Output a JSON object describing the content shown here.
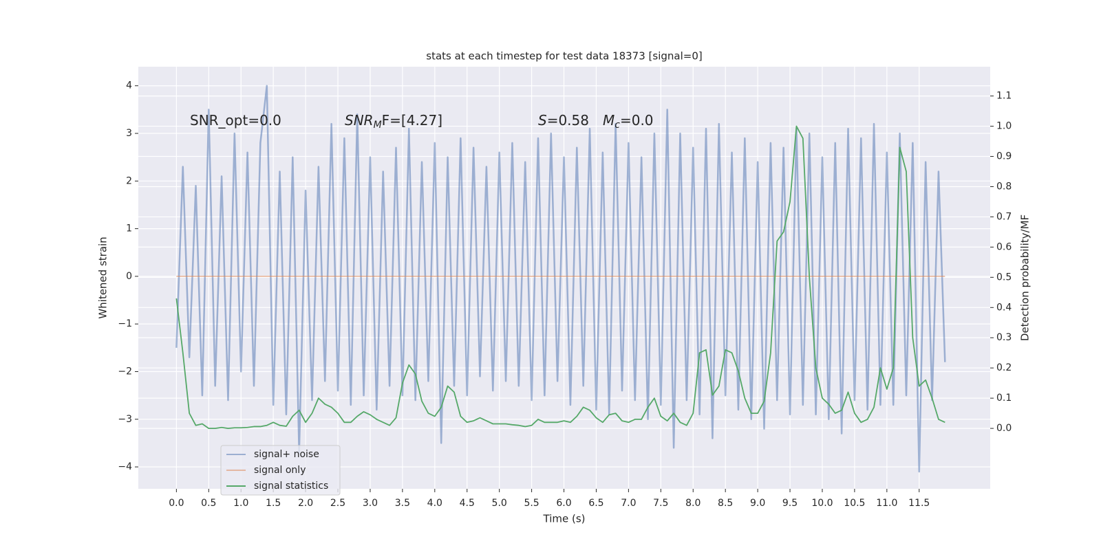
{
  "chart_data": {
    "type": "line",
    "title": "stats at each timestep for test data 18373 [signal=0]",
    "xlabel": "Time (s)",
    "ylabel": "Whitened strain",
    "y2label": "Detection probability/MF",
    "annotations": [
      [
        {
          "text": "SNR_opt=0.0",
          "style": "normal"
        }
      ],
      [
        {
          "text": "SNR",
          "style": "italic"
        },
        {
          "text": "M",
          "style": "sub"
        },
        {
          "text": "F=[4.27]",
          "style": "normal"
        }
      ],
      [
        {
          "text": "S",
          "style": "italic"
        },
        {
          "text": "=0.58",
          "style": "normal"
        }
      ],
      [
        {
          "text": "M",
          "style": "italic"
        },
        {
          "text": "c",
          "style": "sub"
        },
        {
          "text": "=0.0",
          "style": "normal"
        }
      ]
    ],
    "x": [
      0,
      0.1,
      0.2,
      0.3,
      0.4,
      0.5,
      0.6,
      0.7,
      0.8,
      0.9,
      1,
      1.1,
      1.2,
      1.3,
      1.4,
      1.5,
      1.6,
      1.7,
      1.8,
      1.9,
      2,
      2.1,
      2.2,
      2.3,
      2.4,
      2.5,
      2.6,
      2.7,
      2.8,
      2.9,
      3,
      3.1,
      3.2,
      3.3,
      3.4,
      3.5,
      3.6,
      3.7,
      3.8,
      3.9,
      4,
      4.1,
      4.2,
      4.3,
      4.4,
      4.5,
      4.6,
      4.7,
      4.8,
      4.9,
      5,
      5.1,
      5.2,
      5.3,
      5.4,
      5.5,
      5.6,
      5.7,
      5.8,
      5.9,
      6,
      6.1,
      6.2,
      6.3,
      6.4,
      6.5,
      6.6,
      6.7,
      6.8,
      6.9,
      7,
      7.1,
      7.2,
      7.3,
      7.4,
      7.5,
      7.6,
      7.7,
      7.8,
      7.9,
      8,
      8.1,
      8.2,
      8.3,
      8.4,
      8.5,
      8.6,
      8.7,
      8.8,
      8.9,
      9,
      9.1,
      9.2,
      9.3,
      9.4,
      9.5,
      9.6,
      9.7,
      9.8,
      9.9,
      10,
      10.1,
      10.2,
      10.3,
      10.4,
      10.5,
      10.6,
      10.7,
      10.8,
      10.9,
      11,
      11.1,
      11.2,
      11.3,
      11.4,
      11.5,
      11.6,
      11.7,
      11.8,
      11.9
    ],
    "series": [
      {
        "name": "signal+ noise",
        "color": "#4c72b0",
        "opacity": 0.5,
        "values": [
          -1.5,
          2.3,
          -1.7,
          1.9,
          -2.5,
          3.5,
          -2.3,
          2.1,
          -2.6,
          3.0,
          -2.0,
          2.6,
          -2.3,
          2.8,
          4.0,
          -2.7,
          2.2,
          -2.9,
          2.5,
          -3.7,
          1.8,
          -2.6,
          2.3,
          -2.2,
          3.2,
          -2.4,
          2.9,
          -2.7,
          3.4,
          -2.5,
          2.5,
          -2.8,
          2.2,
          -2.3,
          2.7,
          -2.5,
          3.1,
          -2.6,
          2.4,
          -2.2,
          2.8,
          -3.5,
          2.5,
          -2.3,
          2.9,
          -2.5,
          2.7,
          -2.1,
          2.3,
          -2.4,
          2.6,
          -2.2,
          2.8,
          -2.3,
          2.4,
          -2.6,
          2.9,
          -2.5,
          3.0,
          -2.2,
          2.5,
          -2.7,
          2.7,
          -2.3,
          3.1,
          -2.8,
          2.6,
          -2.9,
          3.2,
          -2.4,
          2.8,
          -2.6,
          2.5,
          -3.0,
          3.0,
          -2.7,
          3.5,
          -3.6,
          3.0,
          -2.6,
          2.7,
          -2.9,
          3.1,
          -3.4,
          3.2,
          -2.5,
          2.6,
          -2.8,
          2.9,
          -3.0,
          2.4,
          -3.2,
          2.8,
          -2.6,
          2.7,
          -2.9,
          3.1,
          -2.7,
          3.0,
          -2.9,
          2.5,
          -3.0,
          2.8,
          -3.3,
          3.1,
          -2.6,
          2.9,
          -2.8,
          3.2,
          -2.7,
          2.6,
          -2.7,
          3.0,
          -2.5,
          2.8,
          -4.1,
          2.4,
          -2.6,
          2.2,
          -1.8
        ]
      },
      {
        "name": "signal only",
        "color": "#dd8452",
        "opacity": 0.5,
        "values": [
          0,
          0,
          0,
          0,
          0,
          0,
          0,
          0,
          0,
          0,
          0,
          0,
          0,
          0,
          0,
          0,
          0,
          0,
          0,
          0,
          0,
          0,
          0,
          0,
          0,
          0,
          0,
          0,
          0,
          0,
          0,
          0,
          0,
          0,
          0,
          0,
          0,
          0,
          0,
          0,
          0,
          0,
          0,
          0,
          0,
          0,
          0,
          0,
          0,
          0,
          0,
          0,
          0,
          0,
          0,
          0,
          0,
          0,
          0,
          0,
          0,
          0,
          0,
          0,
          0,
          0,
          0,
          0,
          0,
          0,
          0,
          0,
          0,
          0,
          0,
          0,
          0,
          0,
          0,
          0,
          0,
          0,
          0,
          0,
          0,
          0,
          0,
          0,
          0,
          0,
          0,
          0,
          0,
          0,
          0,
          0,
          0,
          0,
          0,
          0,
          0,
          0,
          0,
          0,
          0,
          0,
          0,
          0,
          0,
          0,
          0,
          0,
          0,
          0,
          0,
          0,
          0,
          0,
          0,
          0
        ]
      },
      {
        "name": "signal statistics",
        "color": "#55a868",
        "opacity": 1,
        "axis": "y2",
        "values": [
          0.43,
          0.25,
          0.05,
          0.01,
          0.015,
          0.0,
          0.0,
          0.003,
          0.0,
          0.002,
          0.002,
          0.003,
          0.006,
          0.006,
          0.01,
          0.02,
          0.01,
          0.007,
          0.04,
          0.06,
          0.02,
          0.05,
          0.1,
          0.08,
          0.07,
          0.05,
          0.02,
          0.02,
          0.04,
          0.055,
          0.045,
          0.03,
          0.02,
          0.01,
          0.035,
          0.15,
          0.21,
          0.18,
          0.09,
          0.05,
          0.04,
          0.07,
          0.14,
          0.12,
          0.04,
          0.02,
          0.025,
          0.035,
          0.025,
          0.015,
          0.015,
          0.015,
          0.012,
          0.01,
          0.006,
          0.01,
          0.03,
          0.02,
          0.02,
          0.02,
          0.025,
          0.02,
          0.04,
          0.07,
          0.06,
          0.035,
          0.02,
          0.045,
          0.05,
          0.025,
          0.02,
          0.03,
          0.03,
          0.07,
          0.1,
          0.04,
          0.025,
          0.05,
          0.02,
          0.01,
          0.05,
          0.25,
          0.26,
          0.11,
          0.14,
          0.26,
          0.25,
          0.19,
          0.1,
          0.05,
          0.05,
          0.09,
          0.25,
          0.62,
          0.65,
          0.75,
          1.0,
          0.96,
          0.5,
          0.2,
          0.1,
          0.08,
          0.05,
          0.06,
          0.12,
          0.05,
          0.02,
          0.03,
          0.07,
          0.2,
          0.13,
          0.2,
          0.93,
          0.85,
          0.3,
          0.14,
          0.16,
          0.1,
          0.03,
          0.02
        ]
      }
    ],
    "xlim": [
      -0.59,
      12.6
    ],
    "ylim": [
      -4.46,
      4.4
    ],
    "y2lim": [
      -0.2,
      1.197
    ],
    "xticks": [
      {
        "value": 0,
        "label": "0.0"
      },
      0.5,
      {
        "value": 1,
        "label": "1.0"
      },
      1.5,
      {
        "value": 2,
        "label": "2.0"
      },
      2.5,
      {
        "value": 3,
        "label": "3.0"
      },
      3.5,
      {
        "value": 4,
        "label": "4.0"
      },
      4.5,
      {
        "value": 5,
        "label": "5.0"
      },
      5.5,
      {
        "value": 6,
        "label": "6.0"
      },
      6.5,
      {
        "value": 7,
        "label": "7.0"
      },
      7.5,
      {
        "value": 8,
        "label": "8.0"
      },
      8.5,
      {
        "value": 9,
        "label": "9.0"
      },
      9.5,
      {
        "value": 10,
        "label": "10.0"
      },
      10.5,
      {
        "value": 11,
        "label": "11.0"
      },
      11.5
    ],
    "yticks": [
      {
        "value": -4,
        "label": "−4"
      },
      {
        "value": -3,
        "label": "−3"
      },
      {
        "value": -2,
        "label": "−2"
      },
      {
        "value": -1,
        "label": "−1"
      },
      0,
      1,
      2,
      3,
      4
    ],
    "y2ticks": [
      {
        "value": 0,
        "label": "0.0"
      },
      0.1,
      0.2,
      0.3,
      0.4,
      0.5,
      0.6,
      0.7,
      0.8,
      0.9,
      {
        "value": 1,
        "label": "1.0"
      },
      1.1
    ],
    "grid": true,
    "legend": "lower left"
  }
}
